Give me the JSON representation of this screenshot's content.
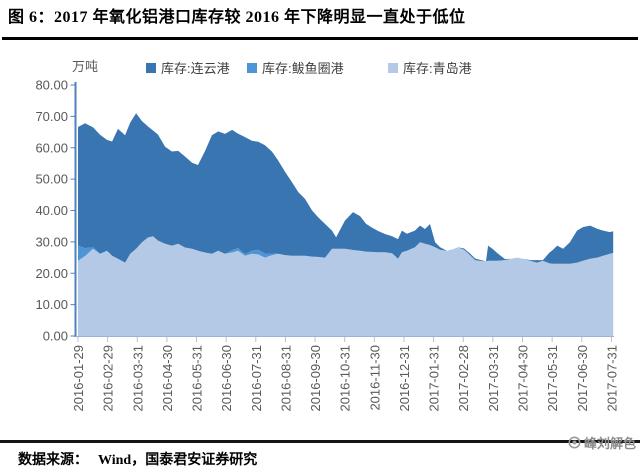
{
  "header": {
    "title": "图 6：2017 年氧化铝港口库存较 2016 年下降明显一直处于低位"
  },
  "chart_data": {
    "type": "area",
    "stacked": true,
    "unit_label": "万吨",
    "ylim": [
      0,
      80
    ],
    "ytick_labels": [
      "80.00",
      "70.00",
      "60.00",
      "50.00",
      "40.00",
      "30.00",
      "20.00",
      "10.00",
      "0.00"
    ],
    "xtick_labels": [
      "2016-01-29",
      "2016-02-29",
      "2016-03-31",
      "2016-04-30",
      "2016-05-31",
      "2016-06-30",
      "2016-07-31",
      "2016-08-31",
      "2016-09-30",
      "2016-10-31",
      "2016-11-30",
      "2016-12-31",
      "2017-01-31",
      "2017-02-28",
      "2017-03-31",
      "2017-04-30",
      "2017-05-31",
      "2017-06-30",
      "2017-07-31"
    ],
    "legend_position": "top",
    "grid": false,
    "x": [
      0,
      0.24,
      0.51,
      0.74,
      0.98,
      1.15,
      1.35,
      1.59,
      1.76,
      1.96,
      2.16,
      2.36,
      2.53,
      2.7,
      2.94,
      3.17,
      3.38,
      3.61,
      3.85,
      4.05,
      4.29,
      4.52,
      4.73,
      4.96,
      5.2,
      5.4,
      5.64,
      5.87,
      6.08,
      6.31,
      6.55,
      6.75,
      6.99,
      7.22,
      7.43,
      7.66,
      7.9,
      8.1,
      8.34,
      8.57,
      8.71,
      9.01,
      9.28,
      9.52,
      9.72,
      9.89,
      10.12,
      10.36,
      10.6,
      10.8,
      10.93,
      11.1,
      11.37,
      11.54,
      11.71,
      11.88,
      12.05,
      12.22,
      12.45,
      12.66,
      12.82,
      13.03,
      13.23,
      13.4,
      13.6,
      13.77,
      13.84,
      14.01,
      14.14,
      14.41,
      14.61,
      14.82,
      15.02,
      15.25,
      15.49,
      15.69,
      15.9,
      16.03,
      16.17,
      16.37,
      16.6,
      16.84,
      17.04,
      17.28,
      17.52,
      17.72,
      17.95,
      18.06
    ],
    "x_note": "x is in units of month ticks, 0 = 2016-01-29, 18 = 2017-07-31",
    "series": [
      {
        "name": "库存:连云港",
        "color": "#3975B0",
        "values": [
          37.8,
          39.8,
          38.2,
          38,
          35.3,
          36.4,
          41.4,
          40.6,
          41.8,
          43.2,
          38.6,
          35.4,
          33.7,
          33.8,
          30.9,
          30,
          29.6,
          29,
          27.4,
          27.3,
          32.4,
          37.8,
          38,
          38.2,
          38.4,
          36.5,
          37.3,
          35,
          34.4,
          34.5,
          32.4,
          29.8,
          26.5,
          23.4,
          20.3,
          18.1,
          14.7,
          12.7,
          10.7,
          5.8,
          3.7,
          9,
          12.1,
          11,
          8.9,
          7.9,
          6.8,
          5.8,
          5.4,
          6.3,
          6.9,
          5.4,
          5.3,
          5.3,
          4.7,
          6.7,
          1.6,
          0.8,
          0,
          0,
          0,
          0.4,
          0.5,
          0.5,
          0.3,
          0,
          4.8,
          3.6,
          2.5,
          0.3,
          0,
          0,
          0,
          0.2,
          0.8,
          0.2,
          3.3,
          4.5,
          5.8,
          4.8,
          6.9,
          10.2,
          10.7,
          10.6,
          9.2,
          8,
          6.9,
          6.9
        ]
      },
      {
        "name": "库存:鲅鱼圈港",
        "color": "#4E95D5",
        "values": [
          4.8,
          2.5,
          0.5,
          0,
          0,
          0,
          0,
          0,
          0,
          0,
          0,
          0,
          0,
          0,
          0,
          0,
          0,
          0,
          0,
          0,
          0,
          0,
          0,
          0,
          0.7,
          0.8,
          0.5,
          1,
          1.5,
          1.3,
          0.5,
          0,
          0,
          0,
          0,
          0,
          0,
          0,
          0,
          0,
          0,
          0,
          0,
          0,
          0,
          0,
          0,
          0,
          0,
          0,
          0,
          0,
          0,
          0,
          0,
          0,
          0,
          0,
          0,
          0,
          0,
          0,
          0,
          0,
          0,
          0,
          0,
          0,
          0,
          0,
          0,
          0,
          0,
          0,
          0,
          0,
          0,
          0,
          0,
          0,
          0,
          0,
          0,
          0,
          0,
          0,
          0,
          0
        ]
      },
      {
        "name": "库存:青岛港",
        "color": "#B4C9E6",
        "values": [
          24,
          25.5,
          27.8,
          26.2,
          27.2,
          25.6,
          24.6,
          23.4,
          26.2,
          27.8,
          29.9,
          31.4,
          31.8,
          30.4,
          29.4,
          28.8,
          29.4,
          28.2,
          27.8,
          27.2,
          26.6,
          26.2,
          27.2,
          26.2,
          26.6,
          27.2,
          25.6,
          26.2,
          26,
          25,
          25.8,
          26.2,
          25.8,
          25.6,
          25.6,
          25.6,
          25.3,
          25.2,
          25,
          27.8,
          27.8,
          27.8,
          27.4,
          27.2,
          26.9,
          26.8,
          26.7,
          26.7,
          26.4,
          24.6,
          26.7,
          27.2,
          28.3,
          29.9,
          29.4,
          29,
          28.3,
          27.5,
          27.2,
          27.7,
          28.3,
          27.5,
          25.8,
          24.2,
          23.9,
          23.8,
          24,
          24,
          24,
          24.2,
          24.6,
          25,
          24.6,
          24,
          23.4,
          24,
          23.2,
          23,
          23,
          23,
          23,
          23.4,
          24,
          24.6,
          25,
          25.6,
          26.2,
          26.5
        ]
      }
    ]
  },
  "colors": {
    "y_axis": "#4F81BD",
    "x_axis": "#9AB3D5",
    "tick_text": "#595959",
    "legend_text": "#404040"
  },
  "footer": {
    "source_label": "数据来源：",
    "source_text": "Wind，国泰君安证券研究",
    "watermark_text": "峰刘解色"
  }
}
